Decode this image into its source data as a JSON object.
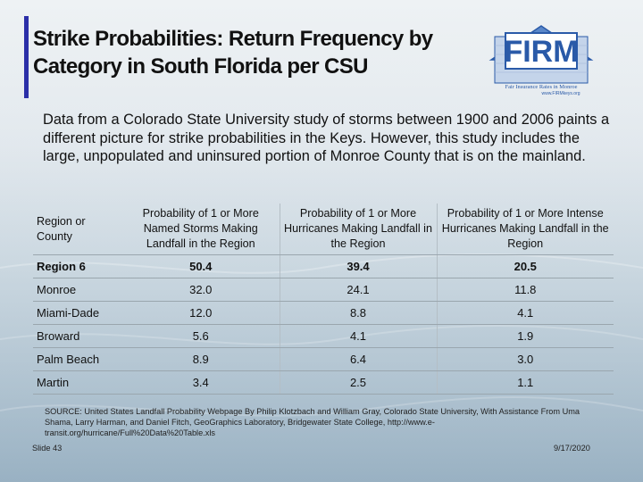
{
  "slide": {
    "title_lines": [
      "Strike Probabilities:  Return Frequency by",
      "Category in South Florida per CSU"
    ],
    "intro": "Data from a Colorado State University study of storms between 1900 and 2006 paints a different picture for strike probabilities in the Keys.  However, this study includes the large, unpopulated and uninsured portion of Monroe County that is on the mainland.",
    "logo": {
      "text": "FIRM",
      "caption": "Fair Insurance Rates in Monroe",
      "url": "www.FIRMkeys.org"
    },
    "table": {
      "headers": [
        "Region or County",
        "Probability of 1 or More Named Storms Making Landfall in the Region",
        "Probability of 1 or More Hurricanes Making Landfall in the Region",
        "Probability of 1 or More Intense Hurricanes Making Landfall in the Region"
      ],
      "rows": [
        [
          "Region 6",
          "50.4",
          "39.4",
          "20.5"
        ],
        [
          "Monroe",
          "32.0",
          "24.1",
          "11.8"
        ],
        [
          "Miami-Dade",
          "12.0",
          "8.8",
          "4.1"
        ],
        [
          "Broward",
          "5.6",
          "4.1",
          "1.9"
        ],
        [
          "Palm Beach",
          "8.9",
          "6.4",
          "3.0"
        ],
        [
          "Martin",
          "3.4",
          "2.5",
          "1.1"
        ]
      ]
    },
    "source": "SOURCE: United States Landfall Probability Webpage By Philip Klotzbach and William Gray, Colorado State University, With Assistance From Uma Shama, Larry Harman, and Daniel Fitch, GeoGraphics Laboratory, Bridgewater State College, http://www.e-transit.org/hurricane/Full%20Data%20Table.xls",
    "footer": {
      "slide_label": "Slide 43",
      "date": "9/17/2020"
    }
  },
  "colors": {
    "accent_bar": "#2b2fa8",
    "logo_blue": "#2a5aa8"
  }
}
